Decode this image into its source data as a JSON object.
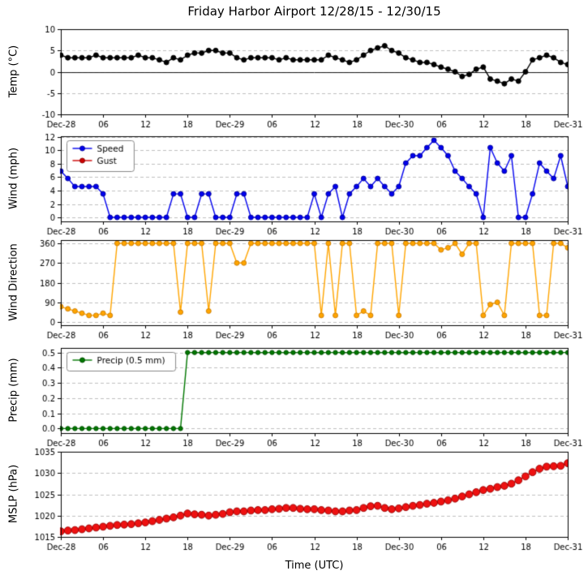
{
  "chart_data": {
    "type": "line",
    "title": "Friday Harbor Airport 12/28/15 - 12/30/15",
    "xlabel": "Time (UTC)",
    "grid": "horizontal-dashed",
    "grid_color": "#b0b0b0",
    "x_tick_hours": [
      0,
      6,
      12,
      18,
      24,
      30,
      36,
      42,
      48,
      54,
      60,
      66,
      72
    ],
    "x_tick_labels": [
      "Dec-28",
      "06",
      "12",
      "18",
      "Dec-29",
      "06",
      "12",
      "18",
      "Dec-30",
      "06",
      "12",
      "18",
      "Dec-31"
    ],
    "x_hours": [
      0,
      1,
      2,
      3,
      4,
      5,
      6,
      7,
      8,
      9,
      10,
      11,
      12,
      13,
      14,
      15,
      16,
      17,
      18,
      19,
      20,
      21,
      22,
      23,
      24,
      25,
      26,
      27,
      28,
      29,
      30,
      31,
      32,
      33,
      34,
      35,
      36,
      37,
      38,
      39,
      40,
      41,
      42,
      43,
      44,
      45,
      46,
      47,
      48,
      49,
      50,
      51,
      52,
      53,
      54,
      55,
      56,
      57,
      58,
      59,
      60,
      61,
      62,
      63,
      64,
      65,
      66,
      67,
      68,
      69,
      70,
      71,
      72
    ],
    "panels": [
      {
        "ylabel": "Temp (°C)",
        "ylim": [
          -10,
          10
        ],
        "yticks": [
          -10,
          -5,
          0,
          5,
          10
        ],
        "ytick_labels": [
          "-10",
          "-5",
          "0",
          "5",
          "10"
        ],
        "zero_line": true,
        "series": [
          {
            "name": "Temp",
            "color": "#000000",
            "marker_edge": "#000000",
            "marker_size": 3,
            "values": [
              3.9,
              3.3,
              3.3,
              3.3,
              3.3,
              3.9,
              3.3,
              3.3,
              3.3,
              3.3,
              3.3,
              3.9,
              3.3,
              3.3,
              2.8,
              2.2,
              3.3,
              2.8,
              3.9,
              4.4,
              4.4,
              5.0,
              5.0,
              4.4,
              4.4,
              3.3,
              2.8,
              3.3,
              3.3,
              3.3,
              3.3,
              2.8,
              3.3,
              2.8,
              2.8,
              2.8,
              2.8,
              2.8,
              3.9,
              3.3,
              2.8,
              2.2,
              2.8,
              3.9,
              5.0,
              5.6,
              6.1,
              5.0,
              4.4,
              3.3,
              2.8,
              2.2,
              2.2,
              1.7,
              1.1,
              0.6,
              0.0,
              -1.1,
              -0.6,
              0.6,
              1.1,
              -1.7,
              -2.2,
              -2.8,
              -1.7,
              -2.2,
              0.0,
              2.8,
              3.3,
              3.9,
              3.3,
              2.2,
              1.7
            ]
          }
        ]
      },
      {
        "ylabel": "Wind (mph)",
        "ylim": [
          -0.6,
          12.1
        ],
        "yticks": [
          0,
          2,
          4,
          6,
          8,
          10,
          12
        ],
        "ytick_labels": [
          "0",
          "2",
          "4",
          "6",
          "8",
          "10",
          "12"
        ],
        "legend": {
          "position": "upper-left",
          "entries": [
            "Speed",
            "Gust"
          ]
        },
        "series": [
          {
            "name": "Speed",
            "color": "#0000ee",
            "marker_edge": "#000099",
            "marker_size": 3,
            "values": [
              6.9,
              5.8,
              4.6,
              4.6,
              4.6,
              4.6,
              3.5,
              0,
              0,
              0,
              0,
              0,
              0,
              0,
              0,
              0,
              3.5,
              3.5,
              0,
              0,
              3.5,
              3.5,
              0,
              0,
              0,
              3.5,
              3.5,
              0,
              0,
              0,
              0,
              0,
              0,
              0,
              0,
              0,
              3.5,
              0,
              3.5,
              4.6,
              0,
              3.5,
              4.6,
              5.8,
              4.6,
              5.8,
              4.6,
              3.5,
              4.6,
              8.1,
              9.2,
              9.2,
              10.4,
              11.5,
              10.4,
              9.2,
              6.9,
              5.8,
              4.6,
              3.5,
              0,
              10.4,
              8.1,
              6.9,
              9.2,
              0,
              0,
              3.5,
              8.1,
              6.9,
              5.8,
              9.2,
              4.6
            ]
          },
          {
            "name": "Gust",
            "color": "#cc0000",
            "marker_edge": "#880000",
            "marker_size": 3,
            "values": []
          }
        ]
      },
      {
        "ylabel": "Wind Direction",
        "ylim": [
          -15,
          375
        ],
        "yticks": [
          0,
          90,
          180,
          270,
          360
        ],
        "ytick_labels": [
          "0",
          "90",
          "180",
          "270",
          "360"
        ],
        "series": [
          {
            "name": "Direction",
            "color": "#ffa500",
            "marker_edge": "#cc7a00",
            "marker_size": 3,
            "values": [
              70,
              60,
              50,
              40,
              30,
              30,
              40,
              30,
              360,
              360,
              360,
              360,
              360,
              360,
              360,
              360,
              360,
              45,
              360,
              360,
              360,
              50,
              360,
              360,
              360,
              270,
              270,
              360,
              360,
              360,
              360,
              360,
              360,
              360,
              360,
              360,
              360,
              30,
              360,
              30,
              360,
              360,
              30,
              50,
              30,
              360,
              360,
              360,
              30,
              360,
              360,
              360,
              360,
              360,
              330,
              340,
              360,
              310,
              360,
              360,
              30,
              80,
              90,
              30,
              360,
              360,
              360,
              360,
              30,
              30,
              360,
              360,
              340
            ]
          }
        ]
      },
      {
        "ylabel": "Precip (mm)",
        "ylim": [
          -0.03,
          0.53
        ],
        "yticks": [
          0.0,
          0.1,
          0.2,
          0.3,
          0.4,
          0.5
        ],
        "ytick_labels": [
          "0.0",
          "0.1",
          "0.2",
          "0.3",
          "0.4",
          "0.5"
        ],
        "legend": {
          "position": "upper-left",
          "entries": [
            "Precip (0.5 mm)"
          ]
        },
        "series": [
          {
            "name": "Precip (0.5 mm)",
            "color": "#007700",
            "marker_edge": "#004d00",
            "marker_size": 2.7,
            "values": [
              0,
              0,
              0,
              0,
              0,
              0,
              0,
              0,
              0,
              0,
              0,
              0,
              0,
              0,
              0,
              0,
              0,
              0,
              0.5,
              0.5,
              0.5,
              0.5,
              0.5,
              0.5,
              0.5,
              0.5,
              0.5,
              0.5,
              0.5,
              0.5,
              0.5,
              0.5,
              0.5,
              0.5,
              0.5,
              0.5,
              0.5,
              0.5,
              0.5,
              0.5,
              0.5,
              0.5,
              0.5,
              0.5,
              0.5,
              0.5,
              0.5,
              0.5,
              0.5,
              0.5,
              0.5,
              0.5,
              0.5,
              0.5,
              0.5,
              0.5,
              0.5,
              0.5,
              0.5,
              0.5,
              0.5,
              0.5,
              0.5,
              0.5,
              0.5,
              0.5,
              0.5,
              0.5,
              0.5,
              0.5,
              0.5,
              0.5,
              0.5
            ]
          }
        ]
      },
      {
        "ylabel": "MSLP (hPa)",
        "ylim": [
          1015,
          1035
        ],
        "yticks": [
          1015,
          1020,
          1025,
          1030,
          1035
        ],
        "ytick_labels": [
          "1015",
          "1020",
          "1025",
          "1030",
          "1035"
        ],
        "series": [
          {
            "name": "MSLP",
            "color": "#ee1111",
            "marker_edge": "#990000",
            "marker_size": 4.4,
            "values": [
              1016.3,
              1016.5,
              1016.6,
              1016.8,
              1017.0,
              1017.2,
              1017.4,
              1017.6,
              1017.8,
              1017.9,
              1018.0,
              1018.2,
              1018.4,
              1018.7,
              1019.0,
              1019.3,
              1019.6,
              1020.0,
              1020.5,
              1020.3,
              1020.2,
              1020.0,
              1020.2,
              1020.4,
              1020.8,
              1021.0,
              1021.0,
              1021.2,
              1021.3,
              1021.3,
              1021.5,
              1021.6,
              1021.8,
              1021.8,
              1021.6,
              1021.5,
              1021.5,
              1021.3,
              1021.2,
              1021.0,
              1021.0,
              1021.2,
              1021.3,
              1021.8,
              1022.2,
              1022.3,
              1021.8,
              1021.5,
              1021.7,
              1022.0,
              1022.3,
              1022.5,
              1022.8,
              1023.0,
              1023.3,
              1023.6,
              1024.0,
              1024.5,
              1025.0,
              1025.5,
              1026.0,
              1026.3,
              1026.7,
              1027.0,
              1027.5,
              1028.3,
              1029.2,
              1030.2,
              1031.0,
              1031.5,
              1031.6,
              1031.7,
              1032.3
            ]
          }
        ]
      }
    ]
  }
}
